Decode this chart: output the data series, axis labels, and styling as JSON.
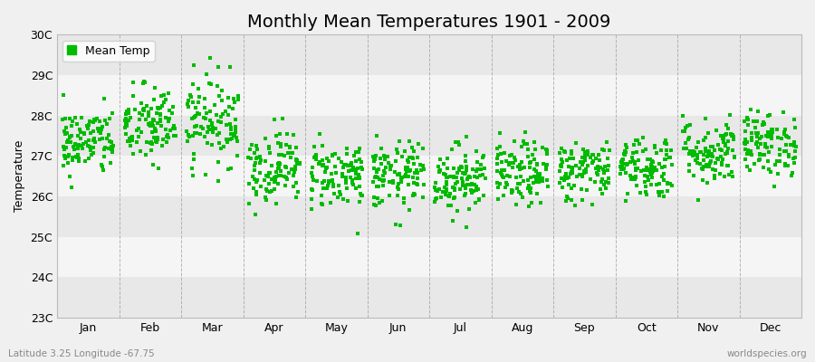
{
  "title": "Monthly Mean Temperatures 1901 - 2009",
  "ylabel": "Temperature",
  "xlabel_bottom_left": "Latitude 3.25 Longitude -67.75",
  "xlabel_bottom_right": "worldspecies.org",
  "ytick_labels": [
    "23C",
    "24C",
    "25C",
    "26C",
    "27C",
    "28C",
    "29C",
    "30C"
  ],
  "ytick_values": [
    23,
    24,
    25,
    26,
    27,
    28,
    29,
    30
  ],
  "ylim": [
    23,
    30
  ],
  "months": [
    "Jan",
    "Feb",
    "Mar",
    "Apr",
    "May",
    "Jun",
    "Jul",
    "Aug",
    "Sep",
    "Oct",
    "Nov",
    "Dec"
  ],
  "n_years": 109,
  "marker_color": "#00BB00",
  "marker_size": 2.5,
  "background_color": "#F0F0F0",
  "band_colors_even": "#E8E8E8",
  "band_colors_odd": "#F5F5F5",
  "grid_color": "#999999",
  "title_fontsize": 14,
  "axis_label_fontsize": 9,
  "tick_fontsize": 9,
  "legend_label": "Mean Temp",
  "seed": 42,
  "monthly_means": [
    27.35,
    27.75,
    27.9,
    26.75,
    26.55,
    26.5,
    26.45,
    26.55,
    26.65,
    26.75,
    27.1,
    27.3
  ],
  "monthly_stds": [
    0.42,
    0.5,
    0.55,
    0.45,
    0.42,
    0.42,
    0.42,
    0.4,
    0.38,
    0.4,
    0.42,
    0.4
  ]
}
